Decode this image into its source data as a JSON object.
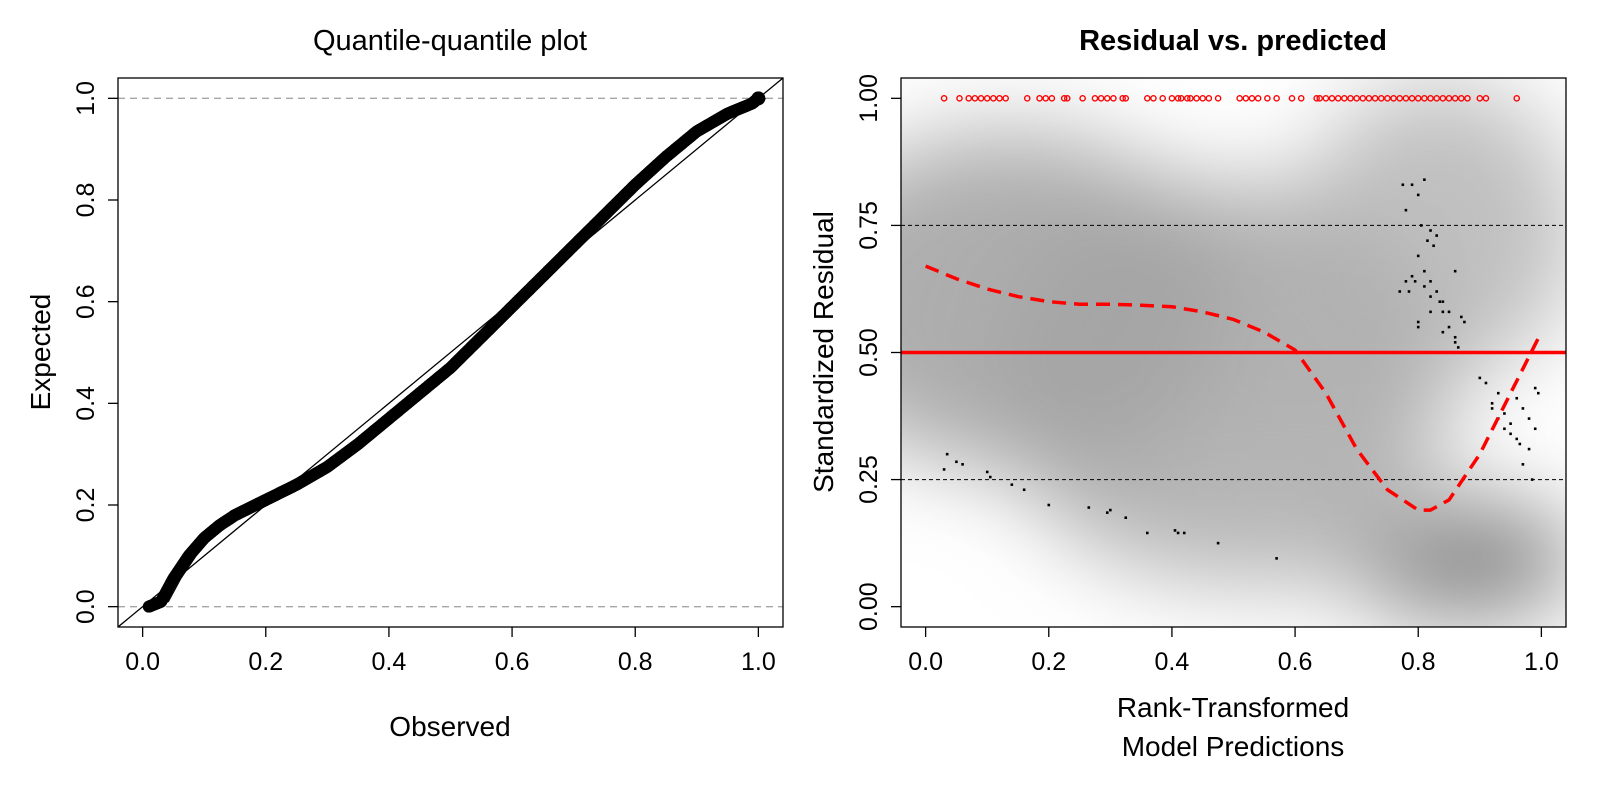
{
  "chart_data": [
    {
      "type": "scatter",
      "title": "Quantile-quantile plot",
      "xlabel": "Observed",
      "ylabel": "Expected",
      "xlim": [
        -0.04,
        1.04
      ],
      "ylim": [
        -0.04,
        1.04
      ],
      "xticks": [
        "0.0",
        "0.2",
        "0.4",
        "0.6",
        "0.8",
        "1.0"
      ],
      "yticks": [
        "0.0",
        "0.2",
        "0.4",
        "0.6",
        "0.8",
        "1.0"
      ],
      "reference_lines": {
        "horizontal_dashed": [
          0,
          1
        ],
        "diagonal": "y = x"
      },
      "series": [
        {
          "x": [
            0.01,
            0.03,
            0.05,
            0.075,
            0.1,
            0.125,
            0.15,
            0.175,
            0.2,
            0.25,
            0.3,
            0.35,
            0.4,
            0.45,
            0.5,
            0.55,
            0.6,
            0.65,
            0.7,
            0.75,
            0.8,
            0.85,
            0.9,
            0.95,
            0.99,
            1.0
          ],
          "y": [
            0.0,
            0.01,
            0.055,
            0.1,
            0.135,
            0.16,
            0.18,
            0.195,
            0.21,
            0.24,
            0.275,
            0.32,
            0.37,
            0.42,
            0.47,
            0.53,
            0.59,
            0.65,
            0.71,
            0.77,
            0.83,
            0.885,
            0.935,
            0.97,
            0.99,
            1.0
          ]
        }
      ],
      "colors": {
        "points": "#000000",
        "reference": "#a6a6a6"
      }
    },
    {
      "type": "scatter",
      "title": "Residual vs. predicted",
      "xlabel": "Rank-Transformed Model Predictions",
      "xlabel_lines": [
        "Rank-Transformed",
        "Model Predictions"
      ],
      "ylabel": "Standardized Residual",
      "xlim": [
        -0.04,
        1.04
      ],
      "ylim": [
        -0.04,
        1.04
      ],
      "xticks": [
        "0.0",
        "0.2",
        "0.4",
        "0.6",
        "0.8",
        "1.0"
      ],
      "yticks": [
        "0.00",
        "0.25",
        "0.50",
        "0.75",
        "1.00"
      ],
      "reference_lines": {
        "horizontal_dashed": [
          0.25,
          0.75
        ],
        "horizontal_solid_red": 0.5
      },
      "outliers": {
        "x": [
          0.03,
          0.055,
          0.07,
          0.08,
          0.09,
          0.1,
          0.11,
          0.12,
          0.13,
          0.165,
          0.185,
          0.195,
          0.205,
          0.225,
          0.23,
          0.255,
          0.275,
          0.285,
          0.295,
          0.305,
          0.32,
          0.325,
          0.36,
          0.37,
          0.385,
          0.4,
          0.41,
          0.415,
          0.425,
          0.43,
          0.44,
          0.45,
          0.46,
          0.475,
          0.51,
          0.52,
          0.53,
          0.54,
          0.555,
          0.57,
          0.595,
          0.61,
          0.635,
          0.64,
          0.65,
          0.66,
          0.67,
          0.68,
          0.69,
          0.7,
          0.71,
          0.72,
          0.73,
          0.74,
          0.75,
          0.76,
          0.77,
          0.78,
          0.79,
          0.8,
          0.81,
          0.82,
          0.83,
          0.84,
          0.85,
          0.86,
          0.87,
          0.88,
          0.9,
          0.91,
          0.96
        ],
        "y": 1.0
      },
      "residual_points": {
        "x": [
          0.03,
          0.035,
          0.05,
          0.06,
          0.1,
          0.105,
          0.14,
          0.16,
          0.2,
          0.265,
          0.295,
          0.3,
          0.325,
          0.36,
          0.405,
          0.41,
          0.42,
          0.475,
          0.57,
          0.775,
          0.78,
          0.79,
          0.8,
          0.805,
          0.81,
          0.815,
          0.82,
          0.825,
          0.83,
          0.785,
          0.795,
          0.8,
          0.81,
          0.82,
          0.835,
          0.84,
          0.85,
          0.86,
          0.865,
          0.87,
          0.875,
          0.77,
          0.79,
          0.8,
          0.81,
          0.82,
          0.83,
          0.84,
          0.85,
          0.86,
          0.78,
          0.8,
          0.82,
          0.84,
          0.86,
          0.9,
          0.91,
          0.92,
          0.93,
          0.94,
          0.95,
          0.96,
          0.97,
          0.98,
          0.99,
          0.995,
          0.92,
          0.94,
          0.96,
          0.98,
          0.99,
          0.93,
          0.95,
          0.97,
          0.985,
          0.965
        ],
        "y": [
          0.27,
          0.3,
          0.285,
          0.28,
          0.265,
          0.255,
          0.24,
          0.23,
          0.2,
          0.195,
          0.185,
          0.19,
          0.175,
          0.145,
          0.15,
          0.145,
          0.145,
          0.125,
          0.095,
          0.83,
          0.78,
          0.83,
          0.81,
          0.75,
          0.84,
          0.72,
          0.74,
          0.71,
          0.73,
          0.62,
          0.64,
          0.56,
          0.63,
          0.61,
          0.6,
          0.58,
          0.55,
          0.53,
          0.51,
          0.57,
          0.56,
          0.62,
          0.65,
          0.69,
          0.66,
          0.64,
          0.62,
          0.6,
          0.58,
          0.66,
          0.64,
          0.55,
          0.58,
          0.54,
          0.52,
          0.45,
          0.44,
          0.4,
          0.42,
          0.38,
          0.36,
          0.41,
          0.39,
          0.37,
          0.43,
          0.42,
          0.39,
          0.35,
          0.33,
          0.31,
          0.35,
          0.37,
          0.34,
          0.28,
          0.25,
          0.32
        ]
      },
      "smooth_curve": {
        "x": [
          0.0,
          0.05,
          0.1,
          0.15,
          0.2,
          0.25,
          0.3,
          0.35,
          0.4,
          0.45,
          0.5,
          0.55,
          0.6,
          0.65,
          0.7,
          0.75,
          0.8,
          0.82,
          0.85,
          0.9,
          0.95,
          1.0
        ],
        "y": [
          0.67,
          0.645,
          0.625,
          0.61,
          0.6,
          0.595,
          0.595,
          0.593,
          0.59,
          0.58,
          0.565,
          0.54,
          0.505,
          0.42,
          0.31,
          0.23,
          0.19,
          0.19,
          0.21,
          0.3,
          0.42,
          0.54
        ]
      },
      "density_background": true,
      "colors": {
        "outliers": "#ff0000",
        "residuals": "#000000",
        "smooth": "#ff0000",
        "midline": "#ff0000",
        "density": "#9a9a9a"
      }
    }
  ]
}
